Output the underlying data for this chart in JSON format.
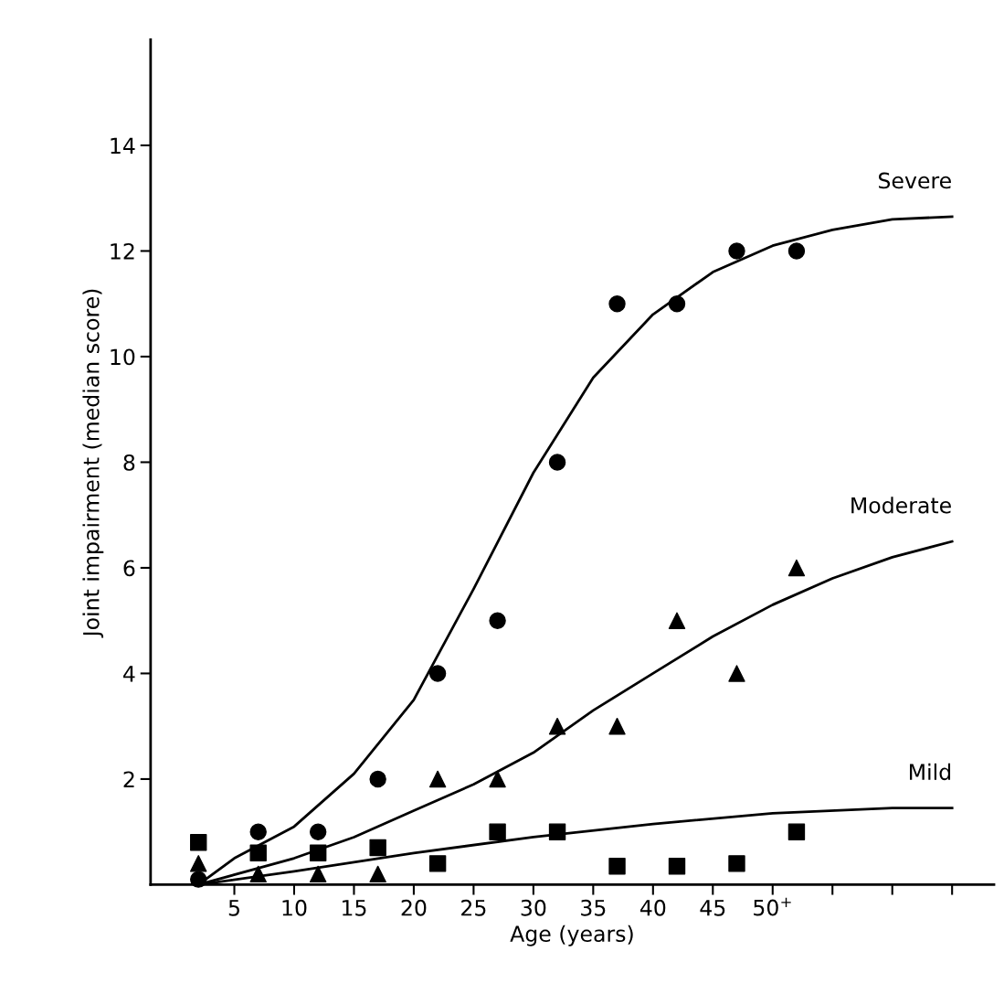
{
  "chart_data": {
    "type": "scatter",
    "xlabel": "Age (years)",
    "ylabel": "Joint impairment (median score)",
    "xlim": [
      -2,
      68.5
    ],
    "ylim": [
      0,
      16
    ],
    "xticks": [
      5,
      10,
      15,
      20,
      25,
      30,
      35,
      40,
      45,
      {
        "value": 50,
        "label": "50$^{+}$"
      },
      {
        "value": 55,
        "label": null
      },
      {
        "value": 60,
        "label": null
      },
      {
        "value": 65,
        "label": null
      }
    ],
    "yticks": [
      2,
      4,
      6,
      8,
      10,
      12,
      14
    ],
    "grid": false,
    "legend": false,
    "series": [
      {
        "marker": "circle",
        "color": "#000000",
        "x": [
          2,
          7,
          12,
          17,
          22,
          27,
          32,
          37,
          42,
          47,
          52
        ],
        "values": [
          0.1,
          1,
          1,
          2,
          4,
          5,
          8,
          11,
          11,
          12,
          12
        ]
      },
      {
        "marker": "triangle",
        "color": "#000000",
        "x": [
          2,
          7,
          12,
          17,
          22,
          27,
          32,
          37,
          42,
          47,
          52
        ],
        "values": [
          0.4,
          0.2,
          0.2,
          0.2,
          2,
          2,
          3,
          3,
          5,
          4,
          6
        ]
      },
      {
        "marker": "square",
        "color": "#000000",
        "x": [
          2,
          7,
          12,
          17,
          22,
          27,
          32,
          37,
          42,
          47,
          52
        ],
        "values": [
          0.8,
          0.6,
          0.6,
          0.7,
          0.4,
          1,
          1,
          0.35,
          0.35,
          0.4,
          1
        ]
      },
      {
        "type": "line",
        "name": "Severe",
        "marker": "none",
        "color": "#000000",
        "x": [
          2,
          5,
          10,
          15,
          20,
          25,
          30,
          35,
          40,
          45,
          50,
          55,
          60,
          65
        ],
        "values": [
          0,
          0.5,
          1.1,
          2.1,
          3.5,
          5.6,
          7.8,
          9.6,
          10.8,
          11.6,
          12.1,
          12.4,
          12.6,
          12.65
        ]
      },
      {
        "type": "line",
        "name": "Moderate",
        "marker": "none",
        "color": "#000000",
        "x": [
          2,
          10,
          15,
          20,
          25,
          30,
          35,
          40,
          45,
          50,
          55,
          60,
          65
        ],
        "values": [
          0,
          0.5,
          0.9,
          1.4,
          1.9,
          2.5,
          3.3,
          4.0,
          4.7,
          5.3,
          5.8,
          6.2,
          6.5
        ]
      },
      {
        "type": "line",
        "name": "Mild",
        "marker": "none",
        "color": "#000000",
        "x": [
          2,
          10,
          20,
          30,
          40,
          50,
          60,
          65
        ],
        "values": [
          0,
          0.25,
          0.6,
          0.9,
          1.15,
          1.35,
          1.45,
          1.45
        ]
      }
    ]
  }
}
